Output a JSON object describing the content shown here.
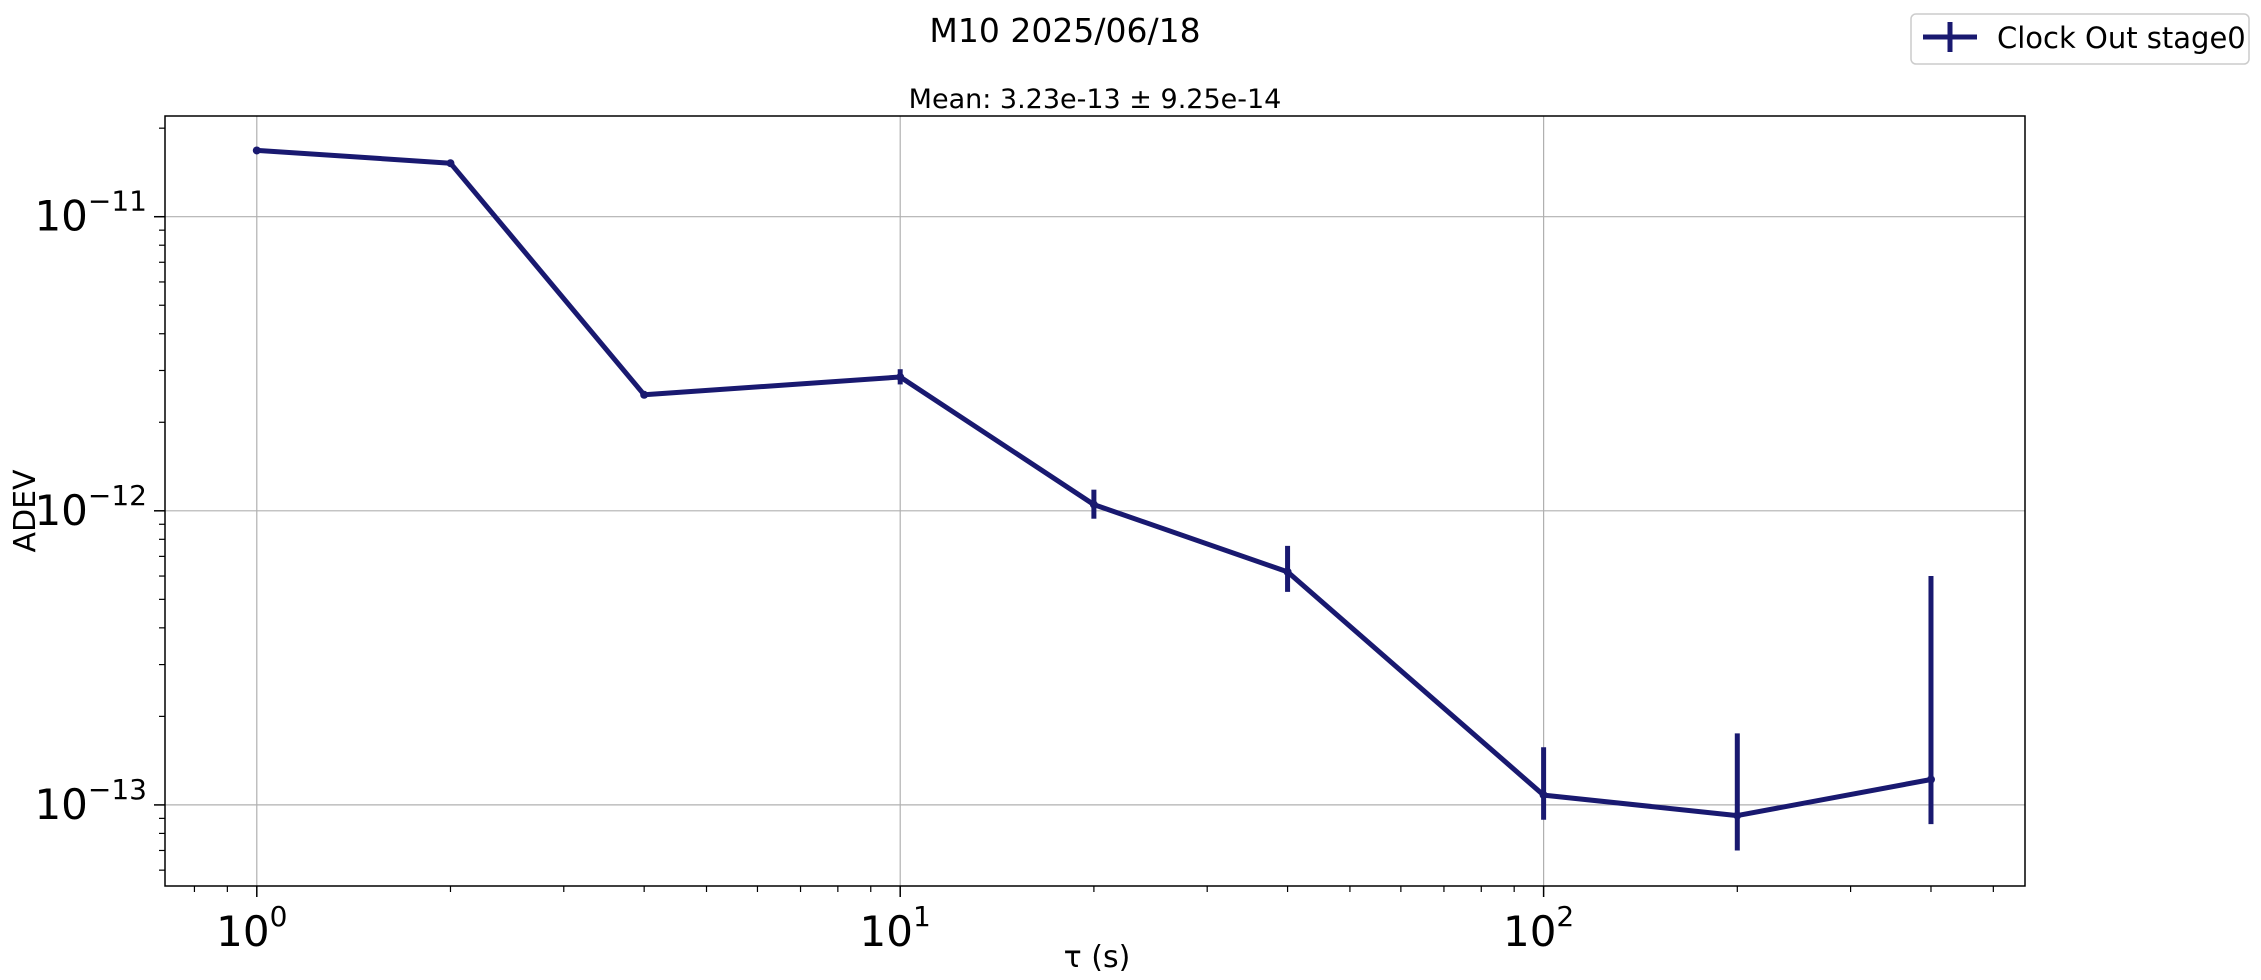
{
  "chart_data": {
    "type": "line",
    "suptitle": "M10 2025/06/18",
    "title": "Mean: 3.23e-13 ± 9.25e-14",
    "xlabel": "τ (s)",
    "ylabel": "ADEV",
    "xscale": "log",
    "yscale": "log",
    "xlim": [
      0.72,
      560
    ],
    "ylim": [
      5.3e-14,
      2.2e-11
    ],
    "grid": true,
    "legend_position": "top-right",
    "xticks": [
      {
        "value": 1,
        "base": "10",
        "exp": "0"
      },
      {
        "value": 10,
        "base": "10",
        "exp": "1"
      },
      {
        "value": 100,
        "base": "10",
        "exp": "2"
      }
    ],
    "yticks": [
      {
        "value": 1e-11,
        "base": "10",
        "exp": "−11"
      },
      {
        "value": 1e-12,
        "base": "10",
        "exp": "−12"
      },
      {
        "value": 1e-13,
        "base": "10",
        "exp": "−13"
      }
    ],
    "series": [
      {
        "name": "Clock Out stage0",
        "color": "#191970",
        "x": [
          1,
          2,
          4,
          10,
          20,
          40,
          100,
          200,
          400
        ],
        "y": [
          1.68e-11,
          1.52e-11,
          2.48e-12,
          2.85e-12,
          1.05e-12,
          6.2e-13,
          1.08e-13,
          9.2e-14,
          1.22e-13
        ],
        "yerr_low": [
          1.67e-11,
          1.51e-11,
          2.44e-12,
          2.69e-12,
          9.4e-13,
          5.3e-13,
          8.9e-14,
          7e-14,
          8.6e-14
        ],
        "yerr_high": [
          1.69e-11,
          1.53e-11,
          2.52e-12,
          3.03e-12,
          1.18e-12,
          7.6e-13,
          1.57e-13,
          1.75e-13,
          6e-13
        ]
      }
    ]
  }
}
